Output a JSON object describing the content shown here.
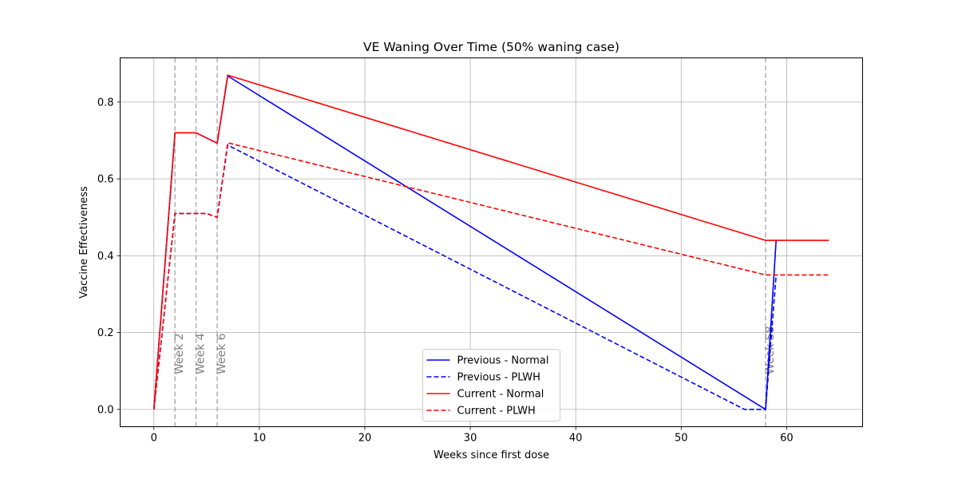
{
  "chart_data": {
    "type": "line",
    "title": "VE Waning Over Time (50% waning case)",
    "xlabel": "Weeks since first dose",
    "ylabel": "Vaccine Effectiveness",
    "xlim": [
      -3.2,
      67.2
    ],
    "ylim": [
      -0.045,
      0.915
    ],
    "x_ticks": [
      0,
      10,
      20,
      30,
      40,
      50,
      60
    ],
    "y_ticks": [
      0.0,
      0.2,
      0.4,
      0.6,
      0.8
    ],
    "grid": true,
    "legend_position": "lower-center",
    "vertical_markers": [
      {
        "x": 2,
        "label": "Week 2"
      },
      {
        "x": 4,
        "label": "Week 4"
      },
      {
        "x": 6,
        "label": "Week 6"
      },
      {
        "x": 58,
        "label": "Week 58"
      }
    ],
    "series": [
      {
        "name": "Previous - Normal",
        "color": "#0000ff",
        "dashed": false,
        "points": [
          [
            0,
            0.0
          ],
          [
            2,
            0.72
          ],
          [
            4,
            0.72
          ],
          [
            6,
            0.693
          ],
          [
            7,
            0.868
          ],
          [
            58,
            0.0
          ],
          [
            59,
            0.44
          ]
        ]
      },
      {
        "name": "Previous - PLWH",
        "color": "#0000ff",
        "dashed": true,
        "points": [
          [
            0,
            0.0
          ],
          [
            2,
            0.51
          ],
          [
            4,
            0.51
          ],
          [
            5,
            0.51
          ],
          [
            6,
            0.5
          ],
          [
            7,
            0.688
          ],
          [
            56,
            0.0
          ],
          [
            58,
            0.0
          ],
          [
            59,
            0.35
          ]
        ]
      },
      {
        "name": "Current - Normal",
        "color": "#ff0000",
        "dashed": false,
        "points": [
          [
            0,
            0.0
          ],
          [
            2,
            0.72
          ],
          [
            4,
            0.72
          ],
          [
            6,
            0.693
          ],
          [
            7,
            0.87
          ],
          [
            58,
            0.44
          ],
          [
            64,
            0.44
          ]
        ]
      },
      {
        "name": "Current - PLWH",
        "color": "#ff0000",
        "dashed": true,
        "points": [
          [
            0,
            0.0
          ],
          [
            2,
            0.51
          ],
          [
            4,
            0.51
          ],
          [
            5,
            0.51
          ],
          [
            6,
            0.5
          ],
          [
            7,
            0.694
          ],
          [
            58,
            0.35
          ],
          [
            64,
            0.35
          ]
        ]
      }
    ]
  }
}
